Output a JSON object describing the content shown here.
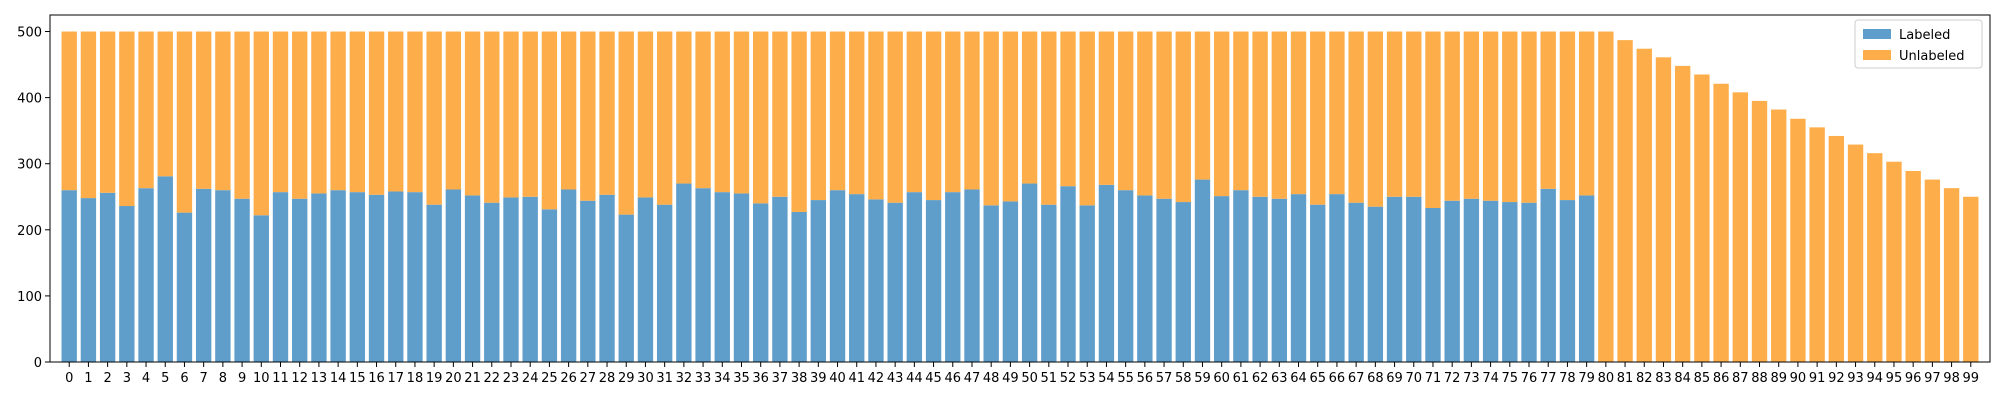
{
  "chart_data": {
    "type": "bar",
    "stacked": true,
    "title": "",
    "xlabel": "",
    "ylabel": "",
    "ylim": [
      0,
      525
    ],
    "y_ticks": [
      0,
      100,
      200,
      300,
      400,
      500
    ],
    "grid": false,
    "legend_position": "top-right",
    "categories": [
      "0",
      "1",
      "2",
      "3",
      "4",
      "5",
      "6",
      "7",
      "8",
      "9",
      "10",
      "11",
      "12",
      "13",
      "14",
      "15",
      "16",
      "17",
      "18",
      "19",
      "20",
      "21",
      "22",
      "23",
      "24",
      "25",
      "26",
      "27",
      "28",
      "29",
      "30",
      "31",
      "32",
      "33",
      "34",
      "35",
      "36",
      "37",
      "38",
      "39",
      "40",
      "41",
      "42",
      "43",
      "44",
      "45",
      "46",
      "47",
      "48",
      "49",
      "50",
      "51",
      "52",
      "53",
      "54",
      "55",
      "56",
      "57",
      "58",
      "59",
      "60",
      "61",
      "62",
      "63",
      "64",
      "65",
      "66",
      "67",
      "68",
      "69",
      "70",
      "71",
      "72",
      "73",
      "74",
      "75",
      "76",
      "77",
      "78",
      "79",
      "80",
      "81",
      "82",
      "83",
      "84",
      "85",
      "86",
      "87",
      "88",
      "89",
      "90",
      "91",
      "92",
      "93",
      "94",
      "95",
      "96",
      "97",
      "98",
      "99"
    ],
    "series": [
      {
        "name": "Labeled",
        "color": "#5f9ecb",
        "values": [
          260,
          248,
          256,
          236,
          263,
          281,
          226,
          262,
          260,
          247,
          222,
          257,
          247,
          255,
          260,
          257,
          253,
          258,
          257,
          238,
          261,
          252,
          241,
          249,
          250,
          231,
          261,
          244,
          253,
          223,
          249,
          238,
          270,
          263,
          257,
          255,
          240,
          250,
          227,
          245,
          260,
          254,
          246,
          241,
          257,
          245,
          257,
          261,
          237,
          243,
          270,
          238,
          266,
          237,
          268,
          260,
          252,
          247,
          242,
          276,
          251,
          260,
          250,
          247,
          254,
          238,
          254,
          241,
          235,
          250,
          250,
          233,
          244,
          247,
          244,
          242,
          241,
          262,
          245,
          252,
          0,
          0,
          0,
          0,
          0,
          0,
          0,
          0,
          0,
          0,
          0,
          0,
          0,
          0,
          0,
          0,
          0,
          0,
          0,
          0
        ]
      },
      {
        "name": "Unlabeled",
        "color": "#fdae4a",
        "values": [
          240,
          252,
          244,
          264,
          237,
          219,
          274,
          238,
          240,
          253,
          278,
          243,
          253,
          245,
          240,
          243,
          247,
          242,
          243,
          262,
          239,
          248,
          259,
          251,
          250,
          269,
          239,
          256,
          247,
          277,
          251,
          262,
          230,
          237,
          243,
          245,
          260,
          250,
          273,
          255,
          240,
          246,
          254,
          259,
          243,
          255,
          243,
          239,
          263,
          257,
          230,
          262,
          234,
          263,
          232,
          240,
          248,
          253,
          258,
          224,
          249,
          240,
          250,
          253,
          246,
          262,
          246,
          259,
          265,
          250,
          250,
          267,
          256,
          253,
          256,
          258,
          259,
          238,
          255,
          248,
          500,
          487,
          474,
          461,
          448,
          435,
          421,
          408,
          395,
          382,
          368,
          355,
          342,
          329,
          316,
          303,
          289,
          276,
          263,
          250
        ]
      }
    ]
  }
}
